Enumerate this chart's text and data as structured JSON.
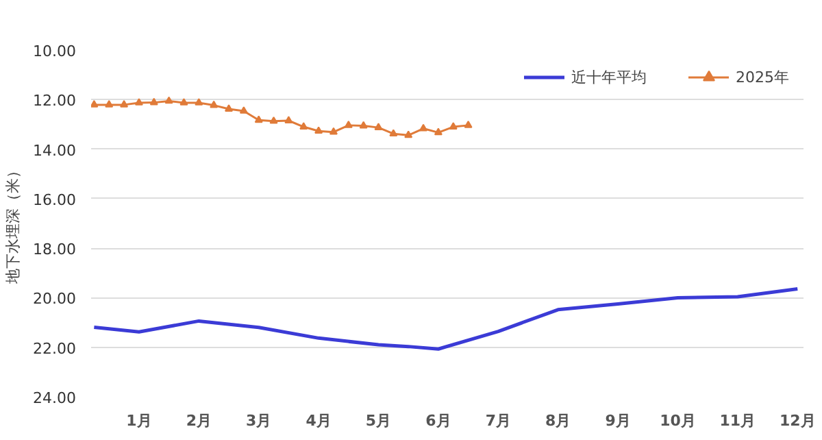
{
  "chart_data": {
    "type": "line",
    "ylabel": "地下水埋深（米）",
    "ylim": [
      24,
      10
    ],
    "yticks": [
      {
        "value": 10,
        "label": "10.00"
      },
      {
        "value": 12,
        "label": "12.00"
      },
      {
        "value": 14,
        "label": "14.00"
      },
      {
        "value": 16,
        "label": "16.00"
      },
      {
        "value": 18,
        "label": "18.00"
      },
      {
        "value": 20,
        "label": "20.00"
      },
      {
        "value": 22,
        "label": "22.00"
      },
      {
        "value": 24,
        "label": "24.00"
      }
    ],
    "xlim": [
      0.2,
      12.1
    ],
    "xticks": [
      {
        "value": 1,
        "label": "1月"
      },
      {
        "value": 2,
        "label": "2月"
      },
      {
        "value": 3,
        "label": "3月"
      },
      {
        "value": 4,
        "label": "4月"
      },
      {
        "value": 5,
        "label": "5月"
      },
      {
        "value": 6,
        "label": "6月"
      },
      {
        "value": 7,
        "label": "7月"
      },
      {
        "value": 8,
        "label": "8月"
      },
      {
        "value": 9,
        "label": "9月"
      },
      {
        "value": 10,
        "label": "10月"
      },
      {
        "value": 11,
        "label": "11月"
      },
      {
        "value": 12,
        "label": "12月"
      }
    ],
    "grid": "y",
    "legend": "top right",
    "series": [
      {
        "name": "近十年平均",
        "color": "#3b3bd6",
        "marker": "none",
        "x": [
          0.25,
          1,
          2,
          3,
          4,
          5,
          5.5,
          6,
          7,
          8,
          9,
          10,
          11,
          12
        ],
        "values": [
          21.19,
          21.38,
          20.94,
          21.2,
          21.63,
          21.9,
          21.97,
          22.07,
          21.36,
          20.48,
          20.25,
          20.0,
          19.96,
          19.64
        ]
      },
      {
        "name": "2025年",
        "color": "#e07b39",
        "marker": "triangle",
        "x": [
          0.25,
          0.5,
          0.75,
          1,
          1.25,
          1.5,
          1.75,
          2,
          2.25,
          2.5,
          2.75,
          3,
          3.25,
          3.5,
          3.75,
          4,
          4.25,
          4.5,
          4.75,
          5,
          5.25,
          5.5,
          5.75,
          6,
          6.25,
          6.5
        ],
        "values": [
          12.21,
          12.21,
          12.21,
          12.13,
          12.12,
          12.06,
          12.13,
          12.13,
          12.23,
          12.38,
          12.46,
          12.83,
          12.87,
          12.85,
          13.1,
          13.27,
          13.31,
          13.04,
          13.06,
          13.13,
          13.38,
          13.44,
          13.17,
          13.33,
          13.1,
          13.04
        ]
      }
    ]
  }
}
